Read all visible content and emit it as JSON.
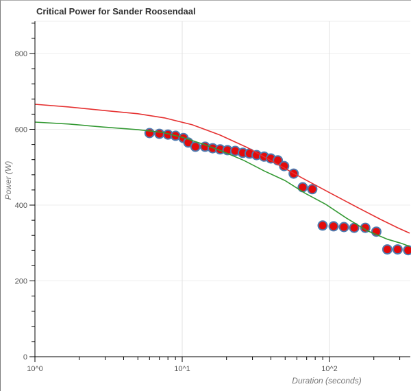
{
  "chart_data": {
    "type": "scatter",
    "title": "Critical Power for Sander Roosendaal",
    "xlabel": "Duration (seconds)",
    "ylabel": "Power (W)",
    "x_scale": "log",
    "xlim": [
      1,
      350
    ],
    "ylim": [
      0,
      884
    ],
    "grid": true,
    "legend": false,
    "x_major_ticks": [
      {
        "t": 1,
        "label": "10^0"
      },
      {
        "t": 10,
        "label": "10^1"
      },
      {
        "t": 100,
        "label": "10^2"
      }
    ],
    "x_minor_ticks": [
      2,
      3,
      4,
      5,
      6,
      7,
      8,
      9,
      20,
      30,
      40,
      50,
      60,
      70,
      80,
      90,
      200,
      300
    ],
    "y_major_ticks": [
      0,
      200,
      400,
      600,
      800
    ],
    "y_minor_step": 40,
    "points": {
      "name": "measured-power-points",
      "data": [
        [
          6,
          590
        ],
        [
          7,
          588
        ],
        [
          8,
          586
        ],
        [
          9,
          583
        ],
        [
          10.2,
          577
        ],
        [
          11,
          565
        ],
        [
          12.3,
          554
        ],
        [
          14.3,
          554
        ],
        [
          16.1,
          550
        ],
        [
          18.1,
          547
        ],
        [
          20.3,
          545
        ],
        [
          22.9,
          543
        ],
        [
          25.8,
          538
        ],
        [
          28.7,
          536
        ],
        [
          32,
          532
        ],
        [
          36,
          528
        ],
        [
          40,
          523
        ],
        [
          44.6,
          518
        ],
        [
          49.2,
          503
        ],
        [
          57.1,
          483
        ],
        [
          65.8,
          447
        ],
        [
          76.4,
          442
        ],
        [
          89.8,
          346
        ],
        [
          106.6,
          344
        ],
        [
          125.3,
          342
        ],
        [
          147.2,
          340
        ],
        [
          175,
          340
        ],
        [
          208,
          330
        ],
        [
          247,
          283
        ],
        [
          290,
          283
        ],
        [
          342,
          281
        ]
      ]
    },
    "series": [
      {
        "name": "model-curve-green",
        "type": "line",
        "color": "#339933",
        "points": [
          [
            1,
            619
          ],
          [
            1.7,
            614
          ],
          [
            2.9,
            606
          ],
          [
            5,
            599
          ],
          [
            7.3,
            592
          ],
          [
            10,
            579
          ],
          [
            13.8,
            561
          ],
          [
            19,
            541
          ],
          [
            26.2,
            518
          ],
          [
            36.1,
            490
          ],
          [
            49.8,
            465
          ],
          [
            68.6,
            431
          ],
          [
            94.5,
            402
          ],
          [
            130,
            366
          ],
          [
            179,
            333
          ],
          [
            247,
            310
          ],
          [
            308,
            299
          ],
          [
            350,
            291
          ]
        ]
      },
      {
        "name": "model-curve-red",
        "type": "line",
        "color": "#e53030",
        "points": [
          [
            1,
            666
          ],
          [
            1.7,
            659
          ],
          [
            2.9,
            650
          ],
          [
            5,
            641
          ],
          [
            7.6,
            630
          ],
          [
            11.7,
            612
          ],
          [
            18,
            585
          ],
          [
            27.6,
            552
          ],
          [
            42.3,
            512
          ],
          [
            64.9,
            472
          ],
          [
            100,
            433
          ],
          [
            153,
            395
          ],
          [
            223,
            362
          ],
          [
            291,
            340
          ],
          [
            350,
            326
          ]
        ]
      }
    ],
    "colors": {
      "point_fill": "#e30b0b",
      "point_stroke": "#4d7bb0",
      "grid_h": "#ececec",
      "grid_v": "#e0e0e0",
      "axis": "#000000",
      "tick_label": "#555555",
      "title": "#303030",
      "axis_label": "#777777"
    }
  }
}
